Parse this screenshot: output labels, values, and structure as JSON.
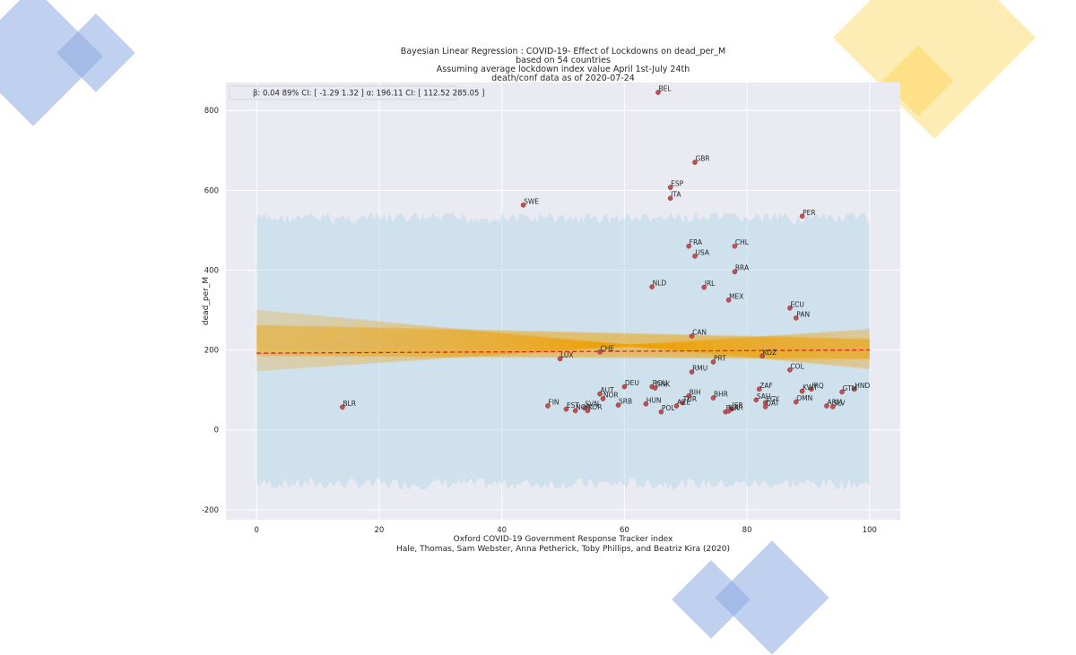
{
  "chart_data": {
    "type": "scatter",
    "title_lines": [
      "Bayesian Linear Regression : COVID-19- Effect of Lockdowns on dead_per_M",
      "based on 54 countries",
      "Assuming average lockdown index value April 1st-July 24th",
      "death/conf data as of 2020-07-24"
    ],
    "xlabel_lines": [
      "Oxford COVID-19 Government Response Tracker index",
      "Hale, Thomas, Sam Webster, Anna Petherick, Toby Phillips, and Beatriz Kira (2020)"
    ],
    "ylabel": "dead_per_M",
    "xlim": [
      -5,
      105
    ],
    "ylim": [
      -225,
      870
    ],
    "xticks": [
      0,
      20,
      40,
      60,
      80,
      100
    ],
    "yticks": [
      -200,
      0,
      200,
      400,
      600,
      800
    ],
    "grid": true,
    "legend": {
      "text": "β: 0.04 89% CI: [ -1.29 1.32 ] α: 196.11 CI: [ 112.52 285.05 ]",
      "placement": "top-left"
    },
    "regression_mean": {
      "intercept": 192,
      "slope": 0.08
    },
    "regression_band_ends": {
      "x0": [
        150,
        298
      ],
      "x100": [
        155,
        250
      ]
    },
    "prediction_band": {
      "x_range": [
        0,
        100
      ],
      "y_range": [
        -150,
        545
      ]
    },
    "colors": {
      "background": "#eaeaf2",
      "grid": "#ffffff",
      "prediction_band": "#add8e6",
      "regression_band": "#f0a30a",
      "mean_line": "#d62728",
      "point": "#c44e52"
    },
    "points": [
      {
        "label": "BEL",
        "x": 65.5,
        "y": 845
      },
      {
        "label": "GBR",
        "x": 71.5,
        "y": 670
      },
      {
        "label": "ESP",
        "x": 67.5,
        "y": 607
      },
      {
        "label": "ITA",
        "x": 67.5,
        "y": 580
      },
      {
        "label": "SWE",
        "x": 43.5,
        "y": 563
      },
      {
        "label": "PER",
        "x": 89.0,
        "y": 535
      },
      {
        "label": "FRA",
        "x": 70.5,
        "y": 460
      },
      {
        "label": "CHL",
        "x": 78.0,
        "y": 460
      },
      {
        "label": "USA",
        "x": 71.5,
        "y": 435
      },
      {
        "label": "BRA",
        "x": 78.0,
        "y": 396
      },
      {
        "label": "NLD",
        "x": 64.5,
        "y": 358
      },
      {
        "label": "IRL",
        "x": 73.0,
        "y": 357
      },
      {
        "label": "MEX",
        "x": 77.0,
        "y": 325
      },
      {
        "label": "ECU",
        "x": 87.0,
        "y": 305
      },
      {
        "label": "PAN",
        "x": 88.0,
        "y": 280
      },
      {
        "label": "CAN",
        "x": 71.0,
        "y": 235
      },
      {
        "label": "CHE",
        "x": 56.0,
        "y": 195
      },
      {
        "label": "KOZ",
        "x": 82.5,
        "y": 185
      },
      {
        "label": "LUX",
        "x": 49.5,
        "y": 178
      },
      {
        "label": "PRT",
        "x": 74.5,
        "y": 170
      },
      {
        "label": "COL",
        "x": 87.0,
        "y": 150
      },
      {
        "label": "RMU",
        "x": 71.0,
        "y": 145
      },
      {
        "label": "DEU",
        "x": 60.0,
        "y": 108
      },
      {
        "label": "ROU",
        "x": 64.5,
        "y": 108
      },
      {
        "label": "DNK",
        "x": 65.0,
        "y": 105
      },
      {
        "label": "ZAF",
        "x": 82.0,
        "y": 102
      },
      {
        "label": "IRQ",
        "x": 90.5,
        "y": 102
      },
      {
        "label": "KWT",
        "x": 89.0,
        "y": 97
      },
      {
        "label": "HND",
        "x": 97.5,
        "y": 102
      },
      {
        "label": "GTM",
        "x": 95.5,
        "y": 95
      },
      {
        "label": "AUT",
        "x": 56.0,
        "y": 90
      },
      {
        "label": "NOR",
        "x": 56.5,
        "y": 78
      },
      {
        "label": "BIH",
        "x": 70.5,
        "y": 85
      },
      {
        "label": "BHR",
        "x": 74.5,
        "y": 80
      },
      {
        "label": "SAU",
        "x": 81.5,
        "y": 75
      },
      {
        "label": "OMN",
        "x": 88.0,
        "y": 70
      },
      {
        "label": "EGY",
        "x": 83.0,
        "y": 68
      },
      {
        "label": "TUR",
        "x": 69.5,
        "y": 68
      },
      {
        "label": "BLR",
        "x": 14.0,
        "y": 57
      },
      {
        "label": "FIN",
        "x": 47.5,
        "y": 60
      },
      {
        "label": "HUN",
        "x": 63.5,
        "y": 65
      },
      {
        "label": "SRB",
        "x": 59.0,
        "y": 62
      },
      {
        "label": "SVN",
        "x": 53.5,
        "y": 55
      },
      {
        "label": "EST",
        "x": 50.5,
        "y": 52
      },
      {
        "label": "NOR",
        "x": 52.0,
        "y": 48
      },
      {
        "label": "KOR",
        "x": 54.0,
        "y": 48
      },
      {
        "label": "AZE",
        "x": 68.5,
        "y": 60
      },
      {
        "label": "POL",
        "x": 66.0,
        "y": 45
      },
      {
        "label": "ISR",
        "x": 77.5,
        "y": 52
      },
      {
        "label": "BLR",
        "x": 76.5,
        "y": 45
      },
      {
        "label": "QAT",
        "x": 83.0,
        "y": 58
      },
      {
        "label": "ARM",
        "x": 93.0,
        "y": 60
      },
      {
        "label": "SLV",
        "x": 94.0,
        "y": 58
      },
      {
        "label": "UKR",
        "x": 77.0,
        "y": 47
      }
    ]
  }
}
